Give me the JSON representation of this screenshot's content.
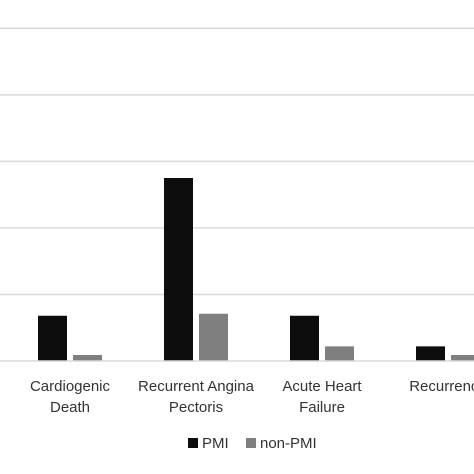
{
  "chart_data": {
    "type": "bar",
    "categories": [
      [
        "Cardiogenic",
        "Death"
      ],
      [
        "Recurrent Angina",
        "Pectoris"
      ],
      [
        "Acute Heart",
        "Failure"
      ],
      [
        "Recurrence"
      ]
    ],
    "series": [
      {
        "name": "PMI",
        "color": "#0d0d0d",
        "values": [
          6.8,
          27.5,
          6.8,
          2.2
        ]
      },
      {
        "name": "non-PMI",
        "color": "#7f7f7f",
        "values": [
          0.9,
          7.1,
          2.2,
          0.9
        ]
      }
    ],
    "ylim": [
      0,
      55
    ],
    "gridline_values": [
      10,
      20,
      30,
      40,
      50
    ],
    "grid": true,
    "legend_position": "bottom"
  }
}
